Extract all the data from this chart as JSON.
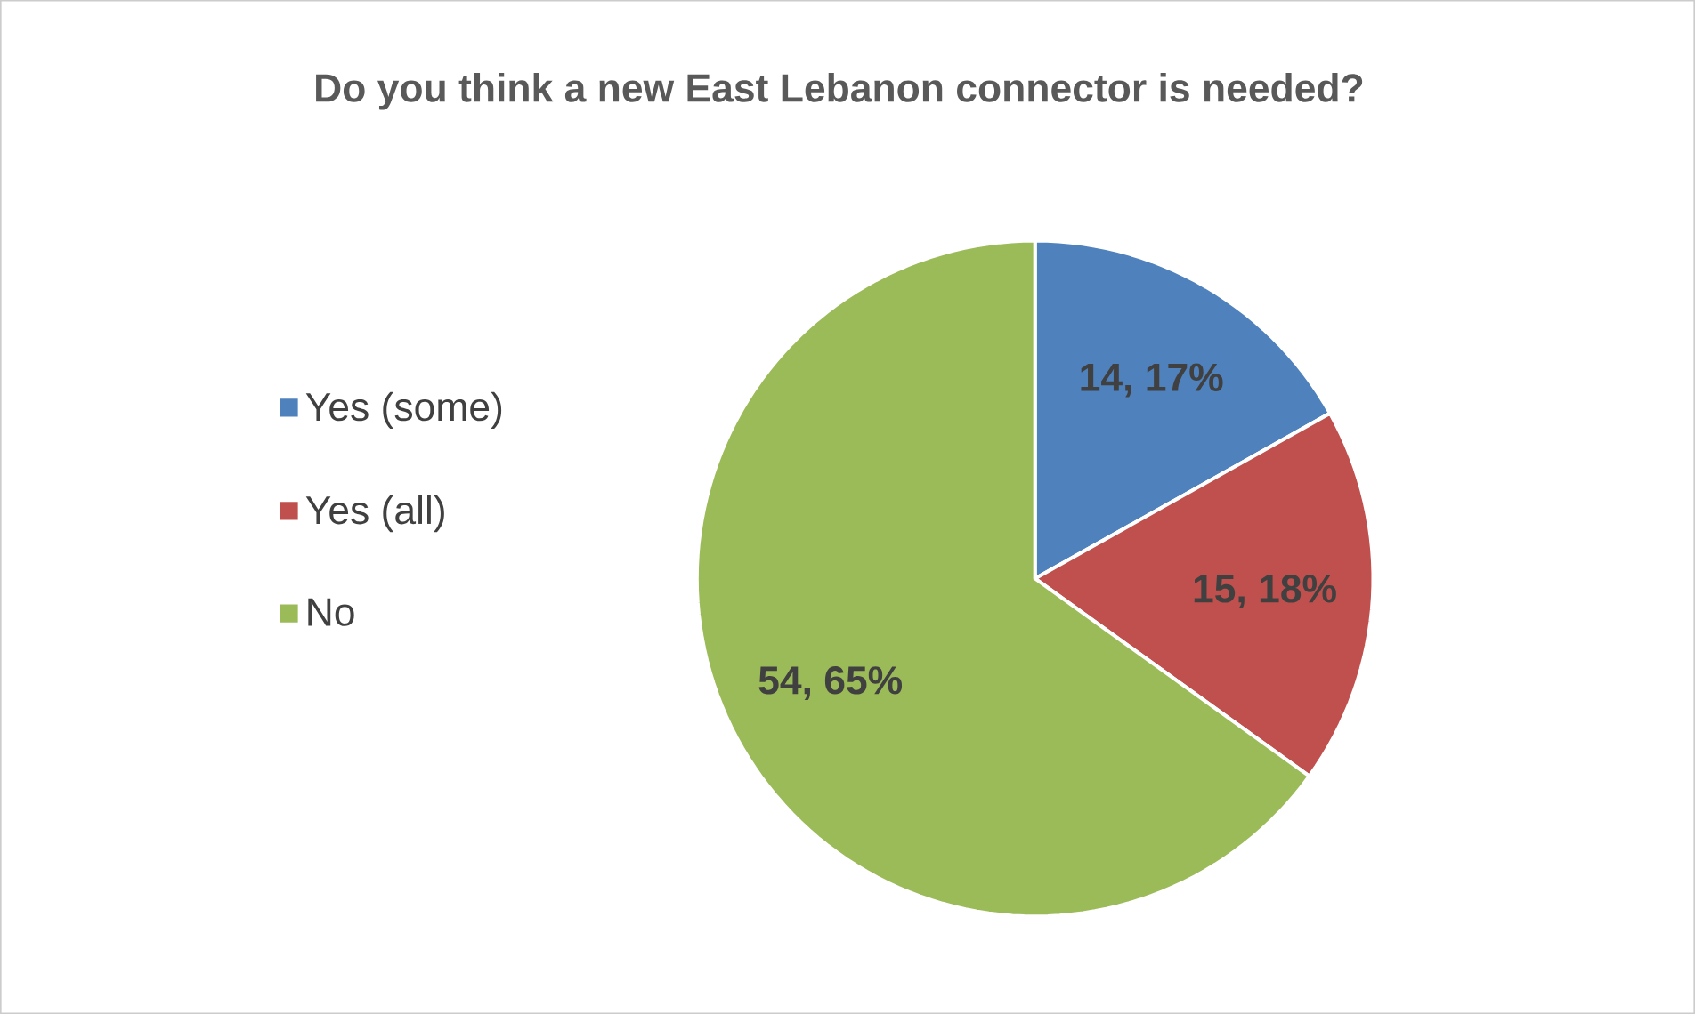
{
  "chart_data": {
    "type": "pie",
    "title": "Do you think a new East Lebanon connector is needed?",
    "categories": [
      "Yes (some)",
      "Yes (all)",
      "No"
    ],
    "values": [
      14,
      15,
      54
    ],
    "colors": [
      "#4f81bd",
      "#c0504d",
      "#9bbb59"
    ],
    "value_labels": [
      "14, 17%",
      "15, 18%",
      "54, 65%"
    ],
    "legend": "left"
  }
}
